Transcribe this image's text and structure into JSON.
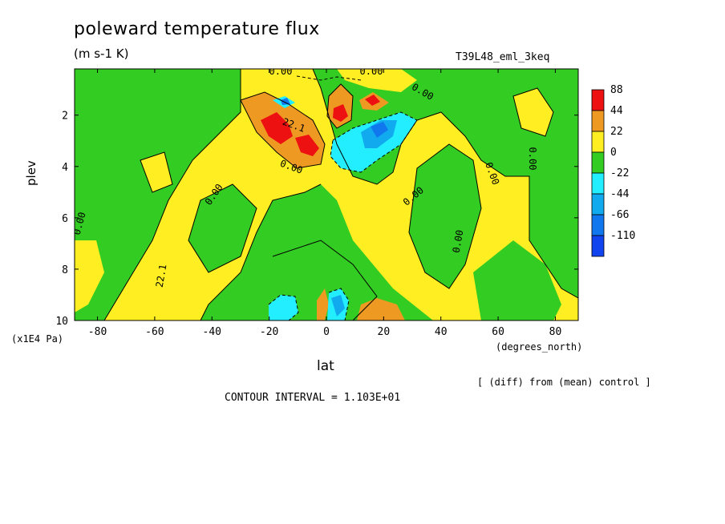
{
  "title": "poleward temperature flux",
  "units": "(m s-1 K)",
  "run_name": "T39L48_eml_3keq",
  "note": "[ (diff) from (mean) control ]",
  "contour_interval": "CONTOUR INTERVAL = 1.103E+01",
  "colors": {
    "red": "#ee1111",
    "orange": "#ee9922",
    "yellow": "#ffee22",
    "green": "#33cc22",
    "cyan": "#22eeff",
    "lightblue": "#11aaee",
    "blue": "#1177ee",
    "darkblue": "#1144ee"
  },
  "chart_data": {
    "type": "heatmap",
    "title": "poleward temperature flux",
    "subtitle": "(m s-1 K)",
    "xlabel": "lat",
    "x_unit": "(degrees_north)",
    "ylabel": "plev",
    "y_unit": "(x1E4 Pa)",
    "xlim": [
      -88,
      88
    ],
    "ylim": [
      10,
      0.2
    ],
    "x_ticks": [
      -80,
      -60,
      -40,
      -20,
      0,
      20,
      40,
      60,
      80
    ],
    "y_ticks": [
      2,
      4,
      6,
      8,
      10
    ],
    "contour_labels": [
      "0.00",
      "0.00",
      "0.00",
      "0.00",
      "0.00",
      "0.00",
      "0.00",
      "0.00",
      "0.00",
      "0.00",
      "22.1",
      "22.1"
    ],
    "colorbar": {
      "levels": [
        "88",
        "44",
        "22",
        "0",
        "-22",
        "-44",
        "-66",
        "-110"
      ],
      "colors": [
        "#ee1111",
        "#ee9922",
        "#ffee22",
        "#33cc22",
        "#22eeff",
        "#11aaee",
        "#1177ee",
        "#1144ee"
      ]
    },
    "regions": [
      {
        "sign": "positive",
        "lat": [
          -20,
          0
        ],
        "plev": [
          1,
          4
        ],
        "value": 60
      },
      {
        "sign": "negative",
        "lat": [
          2,
          30
        ],
        "plev": [
          2,
          4.5
        ],
        "value": -45
      },
      {
        "sign": "negative",
        "lat": [
          -20,
          -10
        ],
        "plev": [
          9,
          10
        ],
        "value": -40
      },
      {
        "sign": "positive",
        "lat": [
          10,
          22
        ],
        "plev": [
          9.3,
          10
        ],
        "value": 25
      }
    ]
  }
}
